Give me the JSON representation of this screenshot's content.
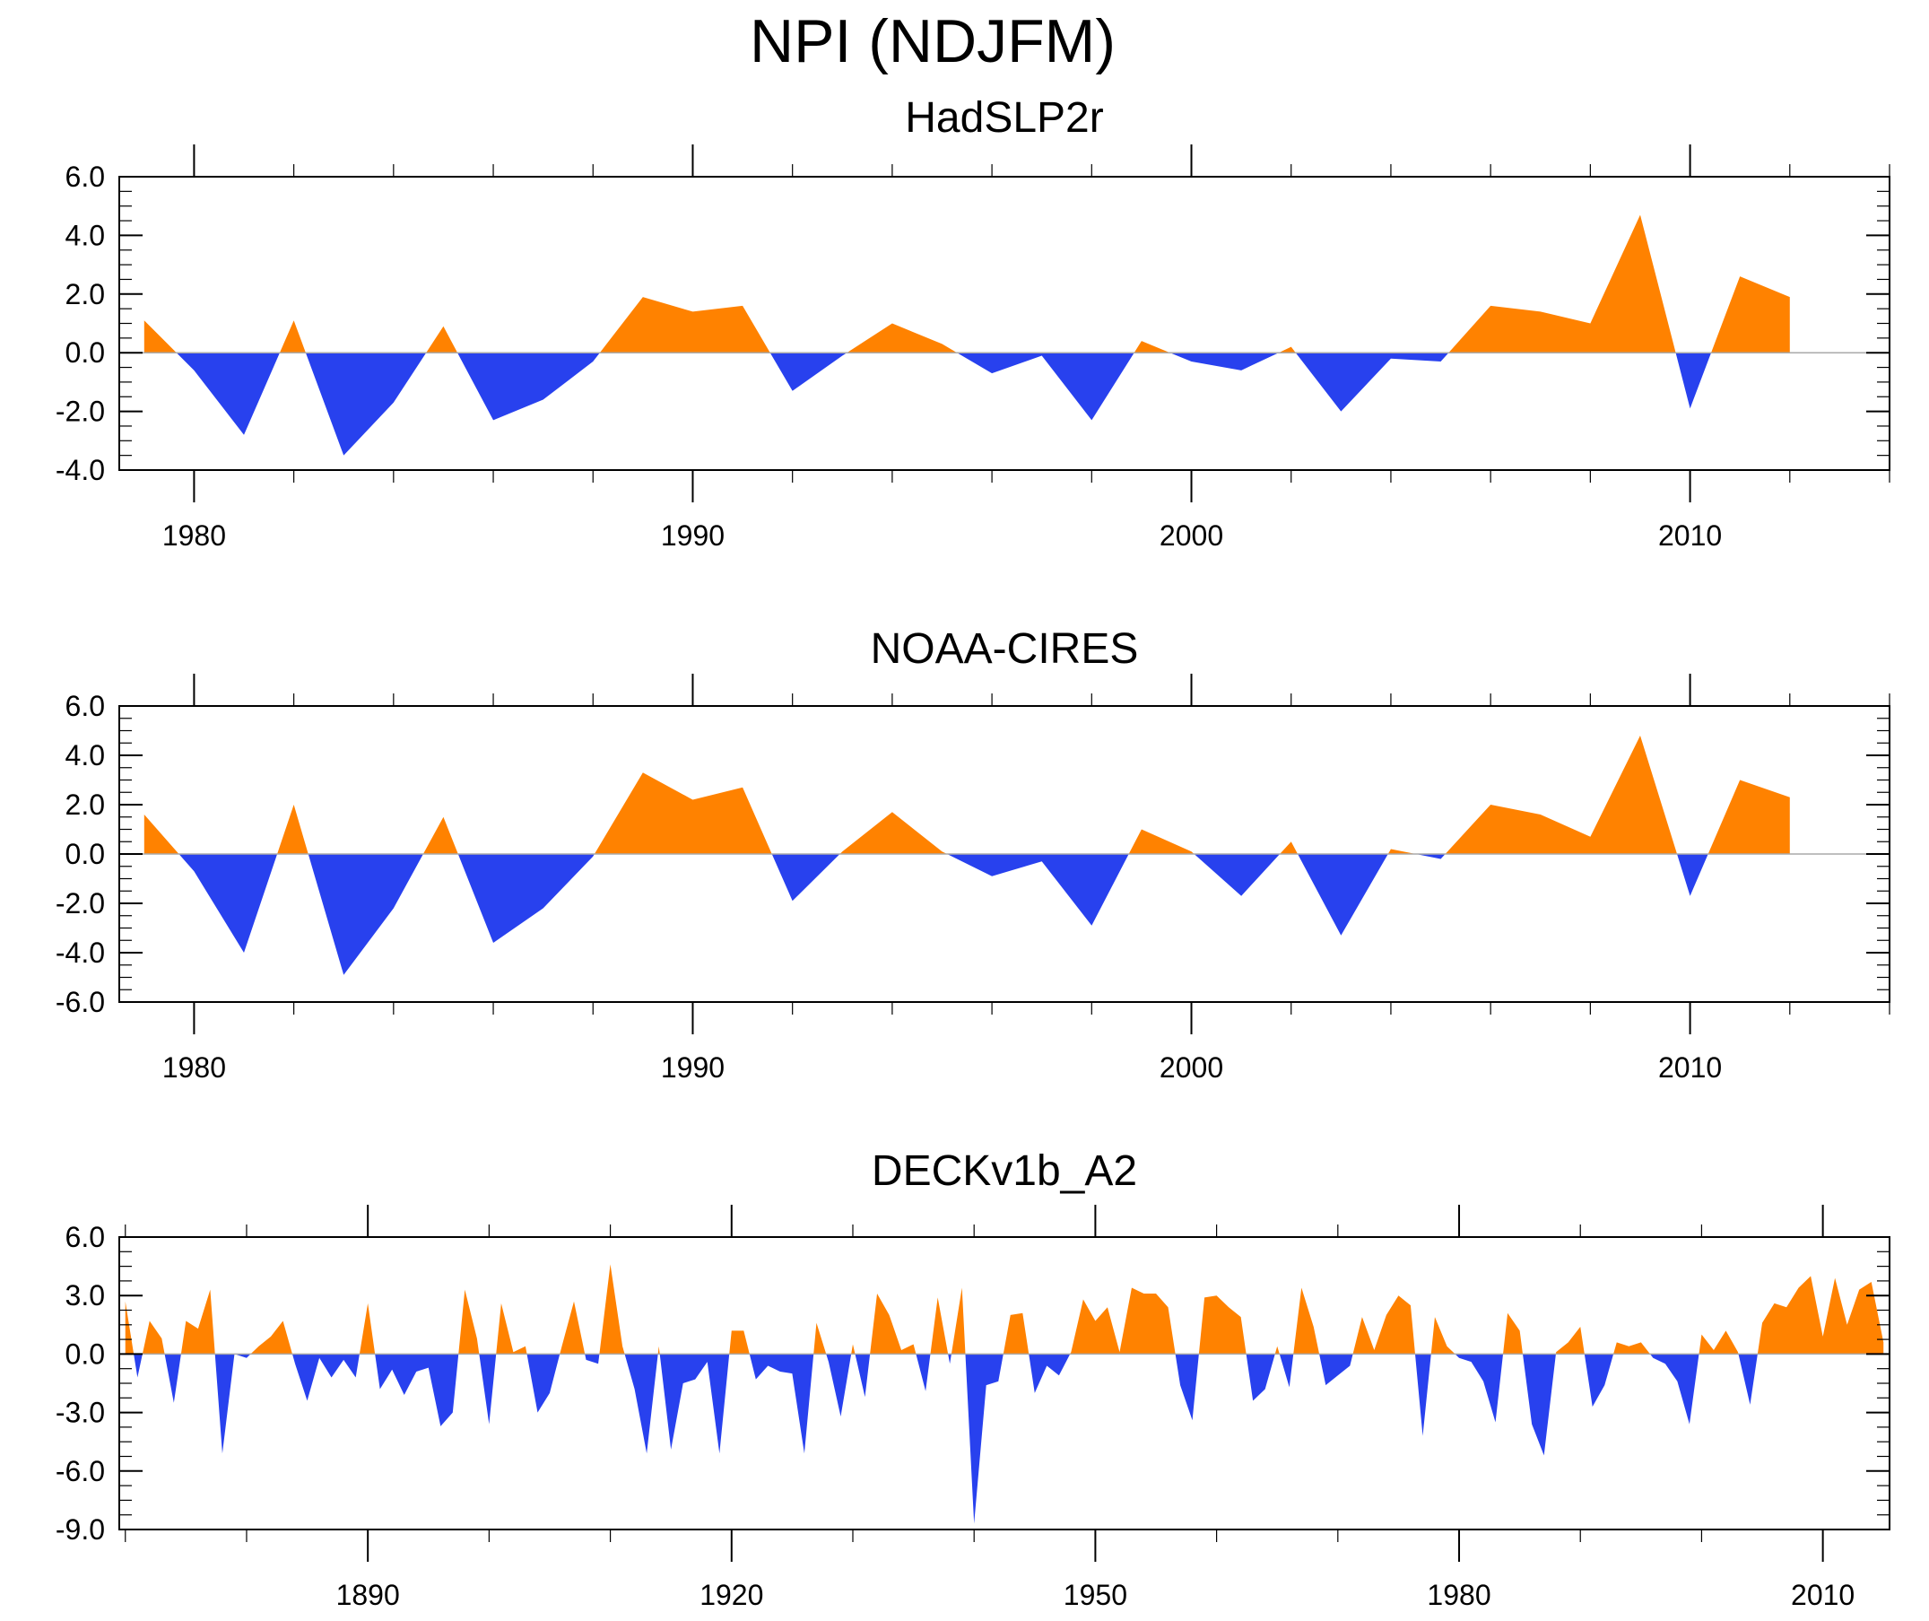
{
  "title": "NPI (NDJFM)",
  "colors": {
    "positive": "#ff8200",
    "negative": "#2841ee",
    "axis": "#000000",
    "zero_line": "#aaaaaa"
  },
  "chart_data": [
    {
      "type": "area",
      "title": "HadSLP2r",
      "xlabel": "",
      "ylabel": "",
      "xlim": [
        1978.5,
        2014
      ],
      "ylim": [
        -4,
        6
      ],
      "yticks": [
        -4,
        -2,
        0,
        2,
        4,
        6
      ],
      "ytick_labels": [
        "-4.0",
        "-2.0",
        "0.0",
        "2.0",
        "4.0",
        "6.0"
      ],
      "y_minor_step": 0.5,
      "xticks": [
        1980,
        1990,
        2000,
        2010
      ],
      "xtick_labels": [
        "1980",
        "1990",
        "2000",
        "2010"
      ],
      "x_minor_step": 2,
      "x": [
        1979,
        1980,
        1981,
        1982,
        1983,
        1984,
        1985,
        1986,
        1987,
        1988,
        1989,
        1990,
        1991,
        1992,
        1993,
        1994,
        1995,
        1996,
        1997,
        1998,
        1999,
        2000,
        2001,
        2002,
        2003,
        2004,
        2005,
        2006,
        2007,
        2008,
        2009,
        2010,
        2011,
        2012
      ],
      "values": [
        1.1,
        -0.6,
        -2.8,
        1.1,
        -3.5,
        -1.7,
        0.9,
        -2.3,
        -1.6,
        -0.3,
        1.9,
        1.4,
        1.6,
        -1.3,
        -0.1,
        1.0,
        0.3,
        -0.7,
        -0.1,
        -2.3,
        0.4,
        -0.3,
        -0.6,
        0.2,
        -2.0,
        -0.2,
        -0.3,
        1.6,
        1.4,
        1.0,
        4.7,
        -1.9,
        2.6,
        1.9
      ]
    },
    {
      "type": "area",
      "title": "NOAA-CIRES",
      "xlabel": "",
      "ylabel": "",
      "xlim": [
        1978.5,
        2014
      ],
      "ylim": [
        -6,
        6
      ],
      "yticks": [
        -6,
        -4,
        -2,
        0,
        2,
        4,
        6
      ],
      "ytick_labels": [
        "-6.0",
        "-4.0",
        "-2.0",
        "0.0",
        "2.0",
        "4.0",
        "6.0"
      ],
      "y_minor_step": 0.5,
      "xticks": [
        1980,
        1990,
        2000,
        2010
      ],
      "xtick_labels": [
        "1980",
        "1990",
        "2000",
        "2010"
      ],
      "x_minor_step": 2,
      "x": [
        1979,
        1980,
        1981,
        1982,
        1983,
        1984,
        1985,
        1986,
        1987,
        1988,
        1989,
        1990,
        1991,
        1992,
        1993,
        1994,
        1995,
        1996,
        1997,
        1998,
        1999,
        2000,
        2001,
        2002,
        2003,
        2004,
        2005,
        2006,
        2007,
        2008,
        2009,
        2010,
        2011,
        2012
      ],
      "values": [
        1.6,
        -0.7,
        -4.0,
        2.0,
        -4.9,
        -2.2,
        1.5,
        -3.6,
        -2.2,
        -0.1,
        3.3,
        2.2,
        2.7,
        -1.9,
        0.1,
        1.7,
        0.1,
        -0.9,
        -0.3,
        -2.9,
        1.0,
        0.1,
        -1.7,
        0.5,
        -3.3,
        0.2,
        -0.2,
        2.0,
        1.6,
        0.7,
        4.8,
        -1.7,
        3.0,
        2.3
      ]
    },
    {
      "type": "area",
      "title": "DECKv1b_A2",
      "xlabel": "",
      "ylabel": "",
      "xlim": [
        1869.5,
        2015.5
      ],
      "ylim": [
        -9,
        6
      ],
      "yticks": [
        -9,
        -6,
        -3,
        0,
        3,
        6
      ],
      "ytick_labels": [
        "-9.0",
        "-6.0",
        "-3.0",
        "0.0",
        "3.0",
        "6.0"
      ],
      "y_minor_step": 0.75,
      "xticks": [
        1890,
        1920,
        1950,
        1980,
        2010
      ],
      "xtick_labels": [
        "1890",
        "1920",
        "1950",
        "1980",
        "2010"
      ],
      "x_minor_step": 10,
      "x_start": 1870,
      "values": [
        2.7,
        -1.2,
        1.7,
        0.8,
        -2.5,
        1.7,
        1.3,
        3.3,
        -5.1,
        0.0,
        -0.2,
        0.4,
        0.9,
        1.7,
        -0.5,
        -2.4,
        -0.2,
        -1.2,
        -0.3,
        -1.2,
        2.6,
        -1.8,
        -0.8,
        -2.1,
        -0.9,
        -0.7,
        -3.7,
        -3.0,
        3.3,
        0.8,
        -3.6,
        2.6,
        0.1,
        0.4,
        -3.0,
        -2.0,
        0.4,
        2.7,
        -0.3,
        -0.5,
        4.6,
        0.4,
        -1.8,
        -5.1,
        0.4,
        -4.9,
        -1.5,
        -1.3,
        -0.4,
        -5.1,
        1.2,
        1.2,
        -1.3,
        -0.6,
        -0.9,
        -1.0,
        -5.1,
        1.6,
        -0.4,
        -3.2,
        0.5,
        -2.2,
        3.1,
        2.0,
        0.2,
        0.5,
        -1.9,
        2.9,
        -0.5,
        3.4,
        -8.7,
        -1.6,
        -1.4,
        2.0,
        2.1,
        -2.0,
        -0.6,
        -1.1,
        0.1,
        2.8,
        1.7,
        2.4,
        0.1,
        3.4,
        3.1,
        3.1,
        2.4,
        -1.6,
        -3.4,
        2.9,
        3.0,
        2.4,
        1.9,
        -2.4,
        -1.8,
        0.4,
        -1.7,
        3.4,
        1.4,
        -1.6,
        -1.1,
        -0.6,
        1.9,
        0.2,
        2.0,
        3.0,
        2.5,
        -4.2,
        1.9,
        0.4,
        -0.2,
        -0.4,
        -1.4,
        -3.5,
        2.1,
        1.2,
        -3.6,
        -5.2,
        0.1,
        0.6,
        1.4,
        -2.7,
        -1.6,
        0.6,
        0.4,
        0.6,
        -0.2,
        -0.5,
        -1.4,
        -3.6,
        1.0,
        0.2,
        1.2,
        0.1,
        -2.6,
        1.6,
        2.6,
        2.4,
        3.4,
        4.0,
        0.9,
        3.9,
        1.5,
        3.3,
        3.7,
        0.6
      ]
    }
  ]
}
